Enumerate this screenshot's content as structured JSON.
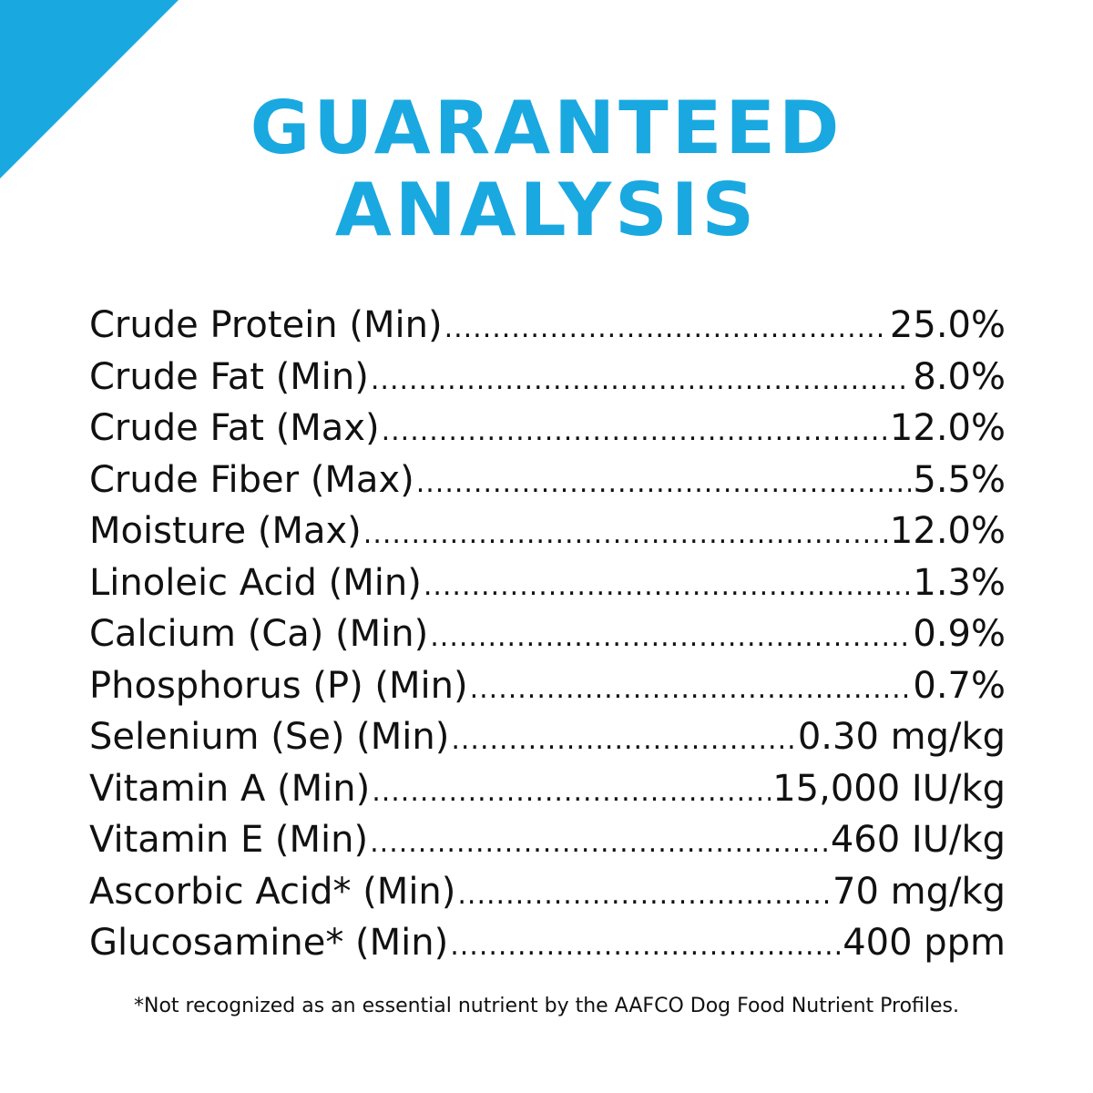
{
  "panel": {
    "accent_color": "#1aa8e0",
    "title_line1": "GUARANTEED",
    "title_line2": "ANALYSIS"
  },
  "analysis": [
    {
      "label": "Crude Protein (Min)",
      "value": "25.0%"
    },
    {
      "label": "Crude Fat (Min)",
      "value": "8.0%"
    },
    {
      "label": "Crude Fat (Max)",
      "value": "12.0%"
    },
    {
      "label": "Crude Fiber (Max)",
      "value": "5.5%"
    },
    {
      "label": "Moisture (Max)",
      "value": "12.0%"
    },
    {
      "label": "Linoleic Acid (Min)",
      "value": "1.3%"
    },
    {
      "label": "Calcium (Ca) (Min)",
      "value": "0.9%"
    },
    {
      "label": "Phosphorus (P) (Min)",
      "value": "0.7%"
    },
    {
      "label": "Selenium (Se) (Min)",
      "value": "0.30 mg/kg"
    },
    {
      "label": "Vitamin A (Min)",
      "value": "15,000 IU/kg"
    },
    {
      "label": "Vitamin E (Min)",
      "value": "460 IU/kg"
    },
    {
      "label": "Ascorbic Acid* (Min)",
      "value": "70 mg/kg"
    },
    {
      "label": "Glucosamine* (Min)",
      "value": "400 ppm"
    }
  ],
  "footnote": "*Not recognized as an essential nutrient by the AAFCO Dog Food Nutrient Profiles."
}
